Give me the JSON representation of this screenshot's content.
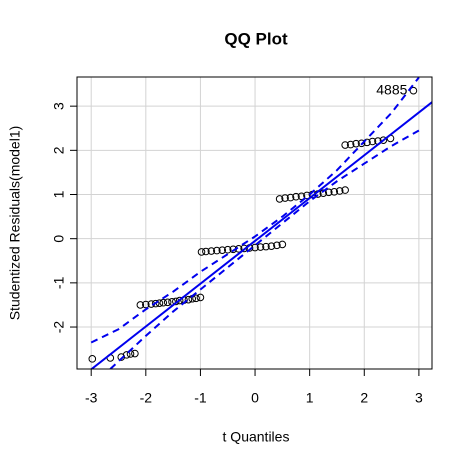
{
  "chart_data": {
    "type": "scatter",
    "title": "QQ Plot",
    "x_label": "t Quantiles",
    "y_label": "Studentized Residuals(model1)",
    "xlim": [
      -3.26,
      3.24
    ],
    "ylim": [
      -2.95,
      3.66
    ],
    "xticks": [
      -3,
      -2,
      -1,
      0,
      1,
      2,
      3
    ],
    "yticks": [
      -2,
      -1,
      0,
      1,
      2,
      3
    ],
    "grid": true,
    "annotation": "4885",
    "series": [
      {
        "type": "points",
        "color": "#000000",
        "x": [
          -2.98,
          -2.65,
          -2.45,
          -2.35,
          -2.28,
          -2.2,
          -2.1,
          -2.0,
          -1.9,
          -1.82,
          -1.75,
          -1.68,
          -1.6,
          -1.52,
          -1.45,
          -1.38,
          -1.3,
          -1.22,
          -1.15,
          -1.08,
          -1.0,
          -0.98,
          -0.9,
          -0.8,
          -0.7,
          -0.6,
          -0.5,
          -0.4,
          -0.3,
          -0.2,
          -0.1,
          0,
          0.1,
          0.2,
          0.3,
          0.4,
          0.5,
          0.45,
          0.55,
          0.65,
          0.75,
          0.85,
          0.95,
          1.05,
          1.15,
          1.25,
          1.35,
          1.45,
          1.55,
          1.65,
          1.65,
          1.75,
          1.85,
          1.95,
          2.05,
          2.15,
          2.25,
          2.35,
          2.48,
          2.9
        ],
        "values": [
          -2.72,
          -2.7,
          -2.68,
          -2.63,
          -2.61,
          -2.6,
          -1.5,
          -1.49,
          -1.48,
          -1.47,
          -1.46,
          -1.45,
          -1.44,
          -1.43,
          -1.42,
          -1.4,
          -1.39,
          -1.38,
          -1.36,
          -1.35,
          -1.33,
          -0.3,
          -0.29,
          -0.28,
          -0.27,
          -0.26,
          -0.25,
          -0.24,
          -0.23,
          -0.22,
          -0.21,
          -0.2,
          -0.19,
          -0.18,
          -0.17,
          -0.15,
          -0.13,
          0.9,
          0.92,
          0.93,
          0.95,
          0.96,
          0.98,
          1.0,
          1.01,
          1.03,
          1.05,
          1.06,
          1.08,
          1.1,
          2.12,
          2.13,
          2.15,
          2.16,
          2.18,
          2.2,
          2.21,
          2.23,
          2.27,
          3.35
        ]
      },
      {
        "type": "line",
        "color": "#0000ee",
        "dash": false,
        "x": [
          -3.26,
          3.24
        ],
        "values": [
          -3.21,
          3.09
        ]
      },
      {
        "type": "line",
        "color": "#0000ee",
        "dash": true,
        "x": [
          -3.0,
          -2.5,
          -2.0,
          -1.5,
          -1.0,
          -0.5,
          0,
          0.5,
          1.0,
          1.5,
          2.0,
          2.5,
          3.0
        ],
        "values": [
          -2.35,
          -2.05,
          -1.6,
          -1.2,
          -0.75,
          -0.35,
          0.05,
          0.5,
          1.0,
          1.55,
          2.2,
          2.85,
          3.65
        ]
      },
      {
        "type": "line",
        "color": "#0000ee",
        "dash": true,
        "x": [
          -2.65,
          -2.0,
          -1.5,
          -1.0,
          -0.5,
          0,
          0.5,
          1.0,
          1.5,
          2.0,
          2.5,
          3.0
        ],
        "values": [
          -2.95,
          -2.2,
          -1.65,
          -1.15,
          -0.65,
          -0.15,
          0.35,
          0.85,
          1.3,
          1.7,
          2.1,
          2.45
        ]
      }
    ]
  }
}
